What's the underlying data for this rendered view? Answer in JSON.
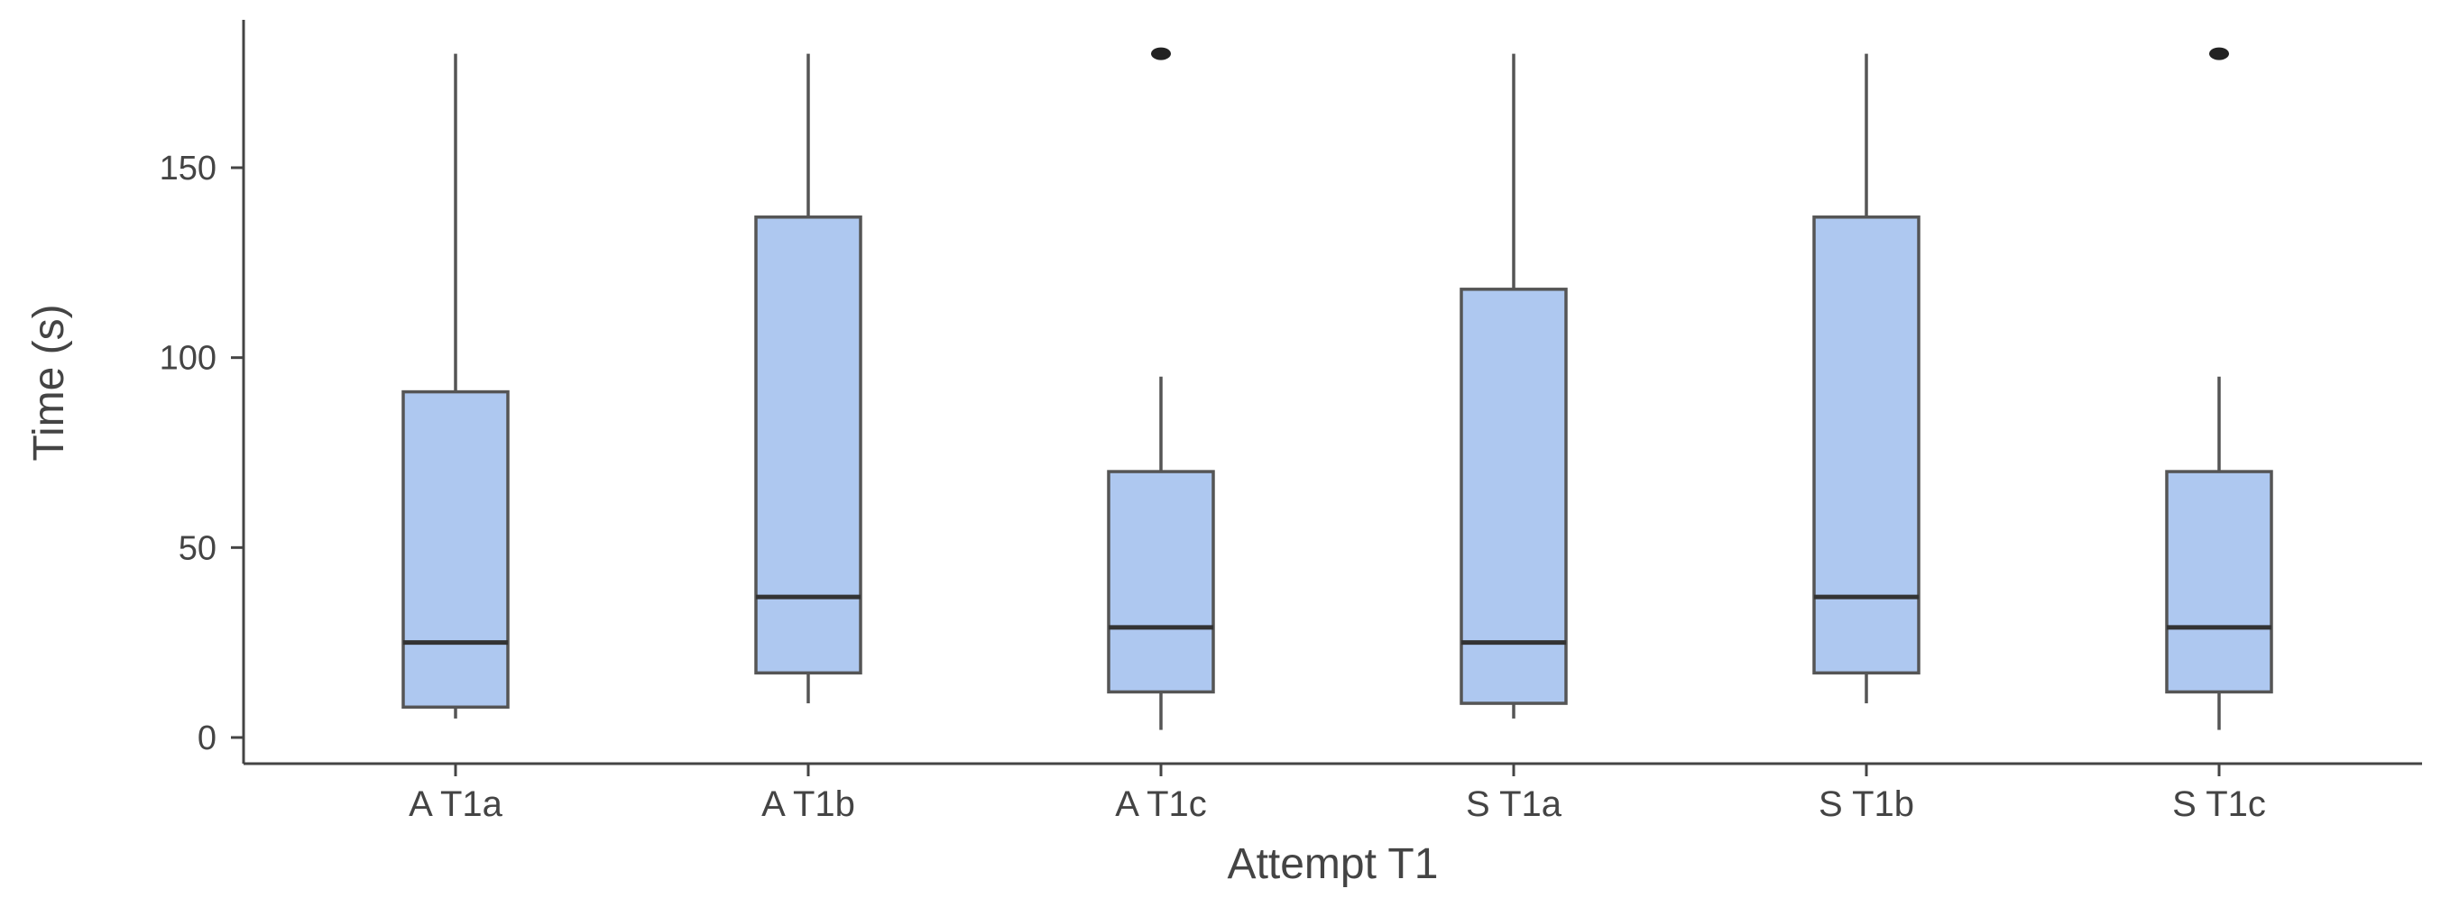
{
  "chart_data": {
    "type": "box",
    "xlabel": "Attempt T1",
    "ylabel": "Time (s)",
    "ylim": [
      -6,
      190
    ],
    "yticks": [
      0,
      50,
      100,
      150
    ],
    "grid": false,
    "colors": {
      "box_fill": "#aec8f0",
      "box_stroke": "#555555",
      "median": "#333333",
      "whisker": "#555555",
      "outlier": "#222222",
      "axis": "#444444",
      "tick_text": "#444444"
    },
    "categories": [
      "A T1a",
      "A T1b",
      "A T1c",
      "S T1a",
      "S T1b",
      "S T1c"
    ],
    "boxes": [
      {
        "category": "A T1a",
        "min": 5,
        "q1": 8,
        "median": 25,
        "q3": 91,
        "max": 180,
        "outliers": []
      },
      {
        "category": "A T1b",
        "min": 9,
        "q1": 17,
        "median": 37,
        "q3": 137,
        "max": 180,
        "outliers": []
      },
      {
        "category": "A T1c",
        "min": 2,
        "q1": 12,
        "median": 29,
        "q3": 70,
        "max": 95,
        "outliers": [
          180
        ]
      },
      {
        "category": "S T1a",
        "min": 5,
        "q1": 9,
        "median": 25,
        "q3": 118,
        "max": 180,
        "outliers": []
      },
      {
        "category": "S T1b",
        "min": 9,
        "q1": 17,
        "median": 37,
        "q3": 137,
        "max": 180,
        "outliers": []
      },
      {
        "category": "S T1c",
        "min": 2,
        "q1": 12,
        "median": 29,
        "q3": 70,
        "max": 95,
        "outliers": [
          180
        ]
      }
    ]
  }
}
